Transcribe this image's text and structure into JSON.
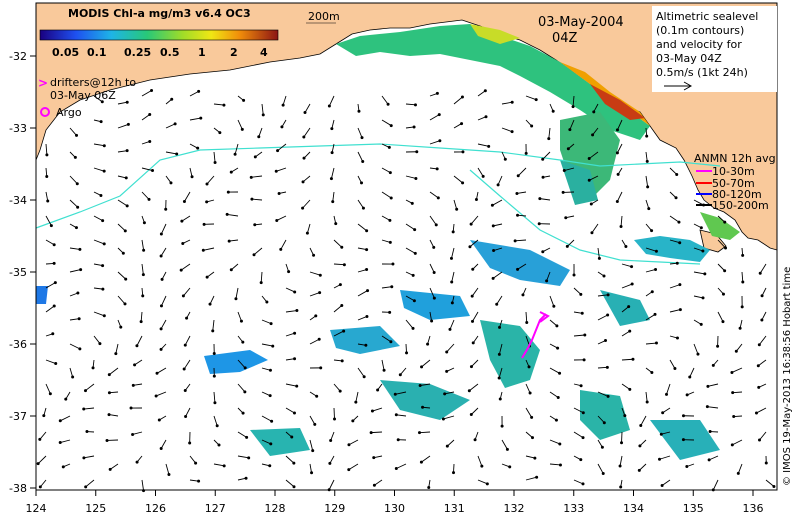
{
  "header": {
    "product_title": "MODIS Chl-a mg/m3 v6.4 OC3",
    "colorbar_ticks": [
      "0.05",
      "0.1",
      "0.25",
      "0.5",
      "1",
      "2",
      "4"
    ],
    "date": "03-May-2004",
    "time": "04Z",
    "isobath_label": "200m"
  },
  "legend_left": {
    "drifters_marker": ">",
    "drifters_line1": "drifters@12h to",
    "drifters_line2": "03-May 06Z",
    "argo_label": "Argo"
  },
  "legend_right": {
    "line1": "Altimetric sealevel",
    "line2": "(0.1m contours)",
    "line3": "and velocity for",
    "line4": "03-May 04Z",
    "line5": "0.5m/s (1kt 24h)"
  },
  "anmn": {
    "title": "ANMN 12h avg",
    "items": [
      {
        "label": "10-30m",
        "color": "#ff00ff"
      },
      {
        "label": "50-70m",
        "color": "#ff0000"
      },
      {
        "label": "80-120m",
        "color": "#0000ff"
      },
      {
        "label": "150-200m",
        "color": "#000000"
      }
    ]
  },
  "axes": {
    "x_ticks": [
      "124",
      "125",
      "126",
      "127",
      "128",
      "129",
      "130",
      "131",
      "132",
      "133",
      "134",
      "135",
      "136"
    ],
    "y_ticks": [
      "-32",
      "-33",
      "-34",
      "-35",
      "-36",
      "-37",
      "-38"
    ]
  },
  "credit": "© IMOS 19-May-2013 16:38:56 Hobart time",
  "colors": {
    "land": "#f9c99b",
    "ocean": "#ffffff",
    "contour": "#40e0d0",
    "drifter": "#ff00ff"
  }
}
